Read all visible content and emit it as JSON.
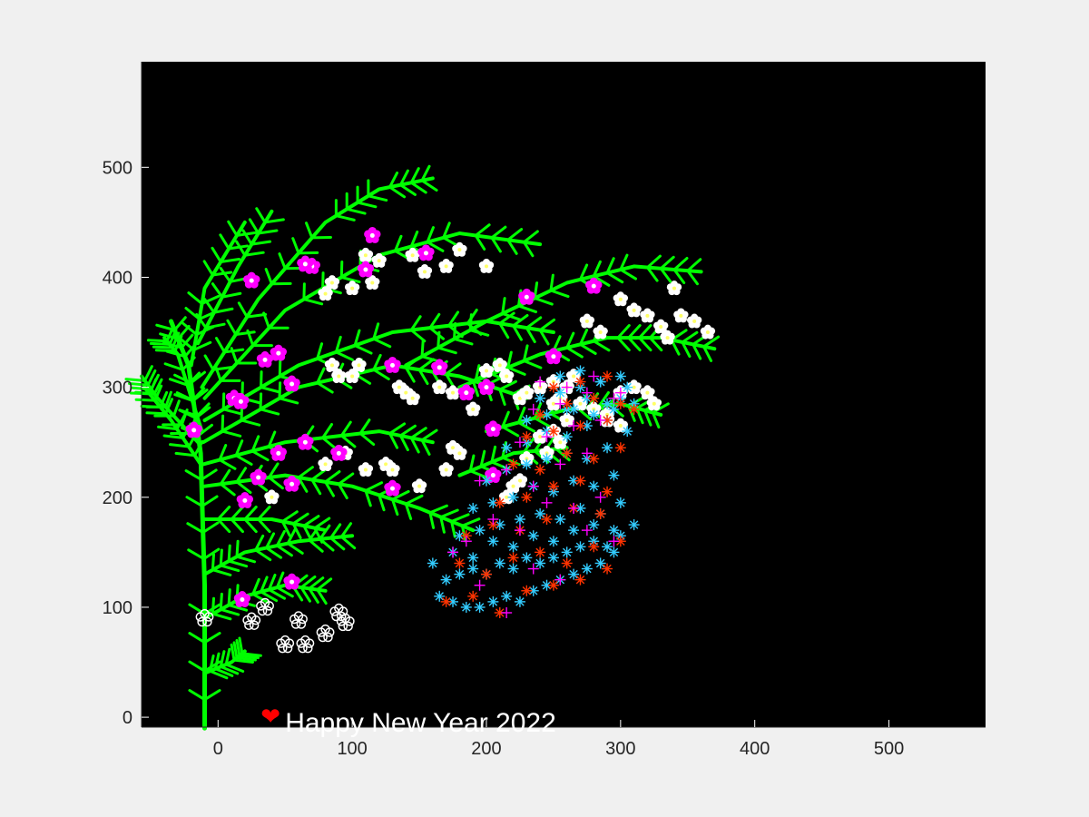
{
  "chart_data": {
    "type": "scatter",
    "title": "",
    "xlabel": "",
    "ylabel": "",
    "xlim": [
      -57,
      572
    ],
    "ylim": [
      -9,
      596
    ],
    "x_ticks": [
      "0",
      "100",
      "200",
      "300",
      "400",
      "500"
    ],
    "y_ticks": [
      "0",
      "100",
      "200",
      "300",
      "400",
      "500"
    ],
    "grid": false,
    "legend": "none",
    "axes_background": "#000000",
    "annotation": {
      "text": "Happy New Year 2022",
      "x": 50,
      "y": -10,
      "symbol": "❤",
      "symbol_color": "#ff0000",
      "color": "#ffffff"
    },
    "branch_color": "#00ff00",
    "branches": [
      {
        "path": [
          [
            -10,
            -10
          ],
          [
            -10,
            120
          ],
          [
            -13,
            240
          ],
          [
            -22,
            320
          ],
          [
            -35,
            360
          ]
        ]
      },
      {
        "path": [
          [
            -13,
            230
          ],
          [
            -35,
            270
          ],
          [
            -55,
            300
          ]
        ]
      },
      {
        "path": [
          [
            -15,
            250
          ],
          [
            -45,
            290
          ],
          [
            -57,
            310
          ]
        ]
      },
      {
        "path": [
          [
            -12,
            260
          ],
          [
            -30,
            330
          ],
          [
            -40,
            345
          ]
        ]
      },
      {
        "path": [
          [
            -20,
            320
          ],
          [
            -10,
            390
          ],
          [
            20,
            450
          ]
        ]
      },
      {
        "path": [
          [
            -15,
            340
          ],
          [
            15,
            410
          ],
          [
            40,
            460
          ]
        ]
      },
      {
        "path": [
          [
            -12,
            300
          ],
          [
            30,
            380
          ],
          [
            80,
            450
          ],
          [
            120,
            480
          ],
          [
            160,
            490
          ]
        ]
      },
      {
        "path": [
          [
            -10,
            290
          ],
          [
            50,
            370
          ],
          [
            120,
            420
          ],
          [
            180,
            440
          ],
          [
            240,
            430
          ]
        ]
      },
      {
        "path": [
          [
            -10,
            270
          ],
          [
            60,
            320
          ],
          [
            130,
            350
          ],
          [
            200,
            360
          ],
          [
            250,
            350
          ]
        ]
      },
      {
        "path": [
          [
            -11,
            250
          ],
          [
            60,
            300
          ],
          [
            130,
            320
          ],
          [
            180,
            310
          ],
          [
            230,
            290
          ]
        ]
      },
      {
        "path": [
          [
            -11,
            230
          ],
          [
            50,
            250
          ],
          [
            120,
            260
          ],
          [
            160,
            250
          ]
        ]
      },
      {
        "path": [
          [
            -10,
            210
          ],
          [
            50,
            220
          ],
          [
            100,
            210
          ],
          [
            150,
            190
          ],
          [
            190,
            170
          ]
        ]
      },
      {
        "path": [
          [
            -10,
            180
          ],
          [
            40,
            180
          ],
          [
            80,
            170
          ]
        ]
      },
      {
        "path": [
          [
            -10,
            130
          ],
          [
            20,
            150
          ],
          [
            60,
            160
          ],
          [
            100,
            165
          ]
        ]
      },
      {
        "path": [
          [
            -10,
            90
          ],
          [
            20,
            110
          ],
          [
            50,
            120
          ],
          [
            80,
            115
          ]
        ]
      },
      {
        "path": [
          [
            -10,
            40
          ],
          [
            10,
            50
          ],
          [
            20,
            60
          ]
        ]
      },
      {
        "path": [
          [
            140,
            320
          ],
          [
            200,
            360
          ],
          [
            260,
            395
          ],
          [
            310,
            410
          ],
          [
            360,
            405
          ]
        ]
      },
      {
        "path": [
          [
            180,
            300
          ],
          [
            240,
            330
          ],
          [
            290,
            345
          ],
          [
            330,
            345
          ],
          [
            370,
            335
          ]
        ]
      },
      {
        "path": [
          [
            200,
            260
          ],
          [
            260,
            280
          ],
          [
            300,
            285
          ],
          [
            330,
            275
          ]
        ]
      },
      {
        "path": [
          [
            180,
            220
          ],
          [
            220,
            240
          ],
          [
            260,
            245
          ]
        ]
      }
    ],
    "series": [
      {
        "name": "",
        "marker": "white-flower",
        "color": "#ffffff",
        "x": [
          110,
          120,
          154,
          170,
          180,
          200,
          115,
          145,
          85,
          80,
          100,
          90,
          100,
          105,
          85,
          135,
          140,
          145,
          165,
          175,
          210,
          200,
          215,
          225,
          190,
          230,
          240,
          250,
          255,
          260,
          270,
          280,
          290,
          300,
          275,
          285,
          300,
          310,
          320,
          330,
          335,
          345,
          355,
          365,
          340,
          250,
          260,
          265,
          300,
          310,
          320,
          325,
          290,
          240,
          250,
          255,
          230,
          225,
          220,
          215,
          175,
          180,
          170,
          245,
          150,
          125,
          130,
          80,
          90,
          110,
          40,
          95
        ],
        "y": [
          420,
          415,
          405,
          410,
          425,
          410,
          395,
          420,
          395,
          385,
          390,
          310,
          310,
          320,
          320,
          300,
          295,
          290,
          300,
          295,
          320,
          315,
          310,
          290,
          280,
          295,
          300,
          305,
          290,
          270,
          285,
          280,
          270,
          265,
          360,
          350,
          380,
          370,
          365,
          355,
          345,
          365,
          360,
          350,
          390,
          285,
          300,
          310,
          295,
          300,
          295,
          285,
          275,
          255,
          260,
          250,
          235,
          215,
          210,
          200,
          245,
          240,
          225,
          240,
          210,
          230,
          225,
          230,
          240,
          225,
          200,
          240
        ]
      },
      {
        "name": "",
        "marker": "magenta-flower",
        "color": "#ff00ff",
        "x": [
          115,
          155,
          110,
          70,
          65,
          25,
          35,
          45,
          55,
          12,
          17,
          -18,
          30,
          45,
          55,
          65,
          90,
          20,
          55,
          18,
          130,
          165,
          185,
          200,
          205,
          230,
          250,
          280,
          130,
          205
        ],
        "y": [
          438,
          422,
          407,
          410,
          412,
          397,
          325,
          331,
          303,
          290,
          287,
          261,
          218,
          240,
          212,
          250,
          240,
          197,
          123,
          107,
          320,
          318,
          295,
          300,
          262,
          382,
          328,
          392,
          208,
          220
        ]
      },
      {
        "name": "",
        "marker": "white-outline-flower",
        "color": "#ffffff",
        "x": [
          -10,
          35,
          50,
          60,
          65,
          80,
          90,
          95,
          25
        ],
        "y": [
          90,
          100,
          66,
          88,
          66,
          76,
          95,
          86,
          87
        ]
      },
      {
        "name": "",
        "marker": "asterisk",
        "color": "#33ccff",
        "x": [
          165,
          175,
          185,
          195,
          205,
          215,
          225,
          235,
          245,
          255,
          265,
          275,
          285,
          295,
          170,
          180,
          190,
          200,
          210,
          220,
          230,
          240,
          250,
          260,
          270,
          280,
          290,
          300,
          160,
          175,
          190,
          205,
          220,
          235,
          250,
          265,
          280,
          295,
          310,
          180,
          195,
          210,
          225,
          240,
          255,
          270,
          285,
          300,
          190,
          205,
          220,
          235,
          250,
          265,
          280,
          295,
          200,
          215,
          230,
          245,
          260,
          275,
          290,
          215,
          230,
          245,
          260,
          275,
          290,
          305,
          230,
          245,
          260,
          275,
          290,
          305,
          240,
          255,
          270,
          285,
          300,
          255,
          270,
          285,
          300,
          265,
          280,
          295,
          310
        ],
        "y": [
          110,
          105,
          100,
          100,
          105,
          110,
          105,
          115,
          120,
          125,
          130,
          135,
          140,
          150,
          125,
          130,
          135,
          130,
          140,
          135,
          145,
          140,
          145,
          150,
          155,
          160,
          155,
          165,
          140,
          150,
          145,
          160,
          155,
          165,
          160,
          170,
          175,
          170,
          175,
          165,
          170,
          175,
          180,
          185,
          180,
          190,
          185,
          195,
          190,
          195,
          200,
          210,
          205,
          215,
          210,
          220,
          215,
          225,
          230,
          235,
          240,
          235,
          245,
          245,
          250,
          260,
          255,
          265,
          270,
          260,
          270,
          275,
          280,
          290,
          285,
          300,
          290,
          295,
          300,
          305,
          310,
          310,
          315,
          305,
          290,
          280,
          275,
          280,
          285
        ]
      },
      {
        "name": "",
        "marker": "asterisk",
        "color": "#ff3300",
        "x": [
          170,
          190,
          210,
          230,
          250,
          270,
          290,
          180,
          200,
          220,
          240,
          260,
          280,
          300,
          185,
          205,
          225,
          245,
          265,
          285,
          210,
          230,
          250,
          270,
          290,
          220,
          240,
          260,
          280,
          300,
          230,
          250,
          270,
          290,
          310,
          240,
          260,
          280,
          300,
          250,
          270,
          290
        ],
        "y": [
          105,
          110,
          95,
          115,
          120,
          125,
          135,
          140,
          130,
          145,
          150,
          140,
          155,
          160,
          165,
          175,
          170,
          180,
          190,
          185,
          195,
          200,
          210,
          215,
          205,
          230,
          225,
          240,
          235,
          245,
          255,
          260,
          265,
          270,
          280,
          275,
          285,
          290,
          285,
          300,
          305,
          310
        ]
      },
      {
        "name": "",
        "marker": "plus",
        "color": "#ff00ff",
        "x": [
          175,
          195,
          215,
          235,
          255,
          275,
          295,
          185,
          205,
          225,
          245,
          265,
          285,
          195,
          215,
          235,
          255,
          275,
          225,
          245,
          265,
          285,
          235,
          255,
          275,
          295,
          240,
          260,
          280,
          300
        ],
        "y": [
          150,
          120,
          95,
          135,
          125,
          170,
          160,
          160,
          180,
          170,
          195,
          190,
          200,
          215,
          225,
          210,
          230,
          240,
          250,
          255,
          265,
          270,
          280,
          285,
          295,
          290,
          305,
          300,
          310,
          295
        ]
      }
    ]
  }
}
